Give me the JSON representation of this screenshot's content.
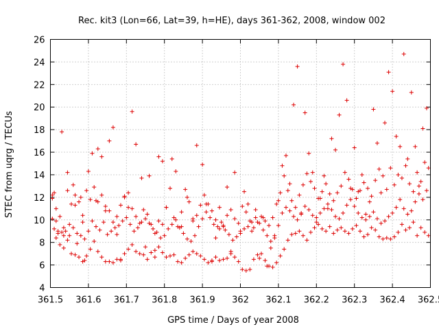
{
  "chart_data": {
    "type": "scatter",
    "title": "Rec. kit3 (Lon=66, Lat=39, h=HE), days 361-362, 2008, window 002",
    "xlabel": "GPS time / Days of year 2008",
    "ylabel": "STEC from uqrg / TECUs",
    "xlim": [
      361.5,
      362.5
    ],
    "ylim": [
      4,
      26
    ],
    "xticks": [
      361.5,
      361.6,
      361.7,
      361.8,
      361.9,
      362,
      362.1,
      362.2,
      362.3,
      362.4,
      362.5
    ],
    "xtick_labels": [
      "361.5",
      "361.6",
      "361.7",
      "361.8",
      "361.9",
      "362",
      "362.1",
      "362.2",
      "362.3",
      "362.4",
      "362.5"
    ],
    "yticks": [
      4,
      6,
      8,
      10,
      12,
      14,
      16,
      18,
      20,
      22,
      24,
      26
    ],
    "ytick_labels": [
      "4",
      "6",
      "8",
      "10",
      "12",
      "14",
      "16",
      "18",
      "20",
      "22",
      "24",
      "26"
    ],
    "grid": true,
    "marker": "+",
    "color": "#dd0000",
    "series": [
      {
        "x": [
          361.505,
          361.51,
          361.515,
          361.52,
          361.53,
          361.535,
          361.545,
          361.55,
          361.56,
          361.565,
          361.57,
          361.58,
          361.585,
          361.59,
          361.6,
          361.61,
          361.62,
          361.625,
          361.635,
          361.645,
          361.655,
          361.665,
          361.675,
          361.685,
          361.695,
          361.705,
          361.715,
          361.725,
          361.74,
          361.75,
          361.76,
          361.775,
          361.785,
          361.795,
          361.805,
          361.82,
          361.83,
          361.845,
          361.86,
          361.875,
          361.885,
          361.9,
          361.91,
          361.925,
          361.935,
          361.945,
          361.955,
          361.965,
          361.975,
          361.985,
          362.0,
          362.01,
          362.02,
          362.03,
          362.04,
          362.05,
          362.06,
          362.07,
          362.08,
          362.09,
          362.1,
          362.11,
          362.12,
          362.13,
          362.14,
          362.15,
          362.16,
          362.17,
          362.18,
          362.19,
          362.2,
          362.21,
          362.22,
          362.23,
          362.24,
          362.25,
          362.26,
          362.27,
          362.28,
          362.29,
          362.3,
          362.31,
          362.32,
          362.33,
          362.34,
          362.35,
          362.36,
          362.37,
          362.38,
          362.39,
          362.4,
          362.41,
          362.42,
          362.43,
          362.44,
          362.45,
          362.46,
          362.47,
          362.48,
          362.49
        ],
        "y": [
          11.9,
          12.4,
          9.9,
          8.8,
          17.8,
          9.3,
          14.2,
          8.6,
          13.1,
          11.3,
          7.9,
          12.0,
          9.8,
          6.4,
          14.3,
          15.9,
          11.7,
          16.3,
          15.6,
          10.8,
          17.0,
          18.2,
          8.7,
          6.4,
          12.1,
          11.1,
          19.6,
          16.7,
          13.7,
          7.6,
          13.9,
          6.7,
          15.6,
          15.2,
          11.1,
          15.4,
          14.3,
          9.4,
          12.0,
          10.1,
          16.6,
          14.9,
          11.4,
          6.4,
          8.4,
          11.1,
          9.4,
          12.9,
          7.2,
          14.2,
          9.0,
          12.5,
          11.4,
          9.0,
          10.9,
          6.6,
          10.2,
          5.9,
          7.5,
          8.6,
          11.7,
          14.8,
          15.7,
          13.2,
          20.2,
          23.6,
          10.6,
          19.5,
          15.9,
          14.2,
          9.8,
          11.9,
          13.9,
          11.0,
          17.2,
          16.2,
          19.3,
          23.8,
          20.6,
          12.8,
          16.4,
          12.5,
          14.0,
          10.5,
          11.6,
          19.8,
          16.8,
          12.4,
          18.6,
          23.1,
          21.4,
          17.4,
          16.5,
          24.7,
          15.4,
          21.3,
          16.5,
          13.0,
          18.1,
          19.9
        ]
      },
      {
        "x": [
          361.505,
          361.515,
          361.525,
          361.535,
          361.545,
          361.555,
          361.565,
          361.575,
          361.585,
          361.595,
          361.605,
          361.615,
          361.625,
          361.635,
          361.645,
          361.655,
          361.665,
          361.675,
          361.685,
          361.695,
          361.705,
          361.715,
          361.725,
          361.735,
          361.745,
          361.755,
          361.765,
          361.775,
          361.785,
          361.795,
          361.805,
          361.815,
          361.825,
          361.835,
          361.845,
          361.855,
          361.865,
          361.875,
          361.885,
          361.895,
          361.905,
          361.915,
          361.925,
          361.935,
          361.945,
          361.955,
          361.965,
          361.975,
          361.985,
          361.995,
          362.005,
          362.015,
          362.025,
          362.035,
          362.045,
          362.055,
          362.065,
          362.075,
          362.085,
          362.095,
          362.105,
          362.115,
          362.125,
          362.135,
          362.145,
          362.155,
          362.165,
          362.175,
          362.185,
          362.195,
          362.205,
          362.215,
          362.225,
          362.235,
          362.245,
          362.255,
          362.265,
          362.275,
          362.285,
          362.295,
          362.305,
          362.315,
          362.325,
          362.335,
          362.345,
          362.355,
          362.365,
          362.375,
          362.385,
          362.395,
          362.405,
          362.415,
          362.425,
          362.435,
          362.445,
          362.455,
          362.465,
          362.475,
          362.485,
          362.495
        ],
        "y": [
          10.1,
          8.4,
          7.8,
          7.5,
          8.2,
          7.0,
          6.9,
          6.7,
          6.3,
          6.8,
          7.4,
          8.1,
          7.2,
          6.7,
          6.3,
          6.3,
          6.2,
          6.5,
          6.5,
          7.0,
          7.4,
          7.8,
          7.2,
          7.0,
          6.9,
          6.5,
          7.1,
          7.3,
          7.6,
          7.1,
          6.7,
          6.8,
          6.9,
          6.3,
          6.2,
          6.6,
          6.9,
          7.2,
          7.0,
          6.8,
          6.5,
          6.2,
          6.3,
          6.7,
          6.4,
          6.5,
          6.6,
          7.0,
          6.7,
          6.3,
          5.6,
          5.5,
          5.6,
          6.5,
          6.9,
          7.0,
          6.4,
          5.9,
          5.8,
          6.2,
          6.8,
          7.4,
          8.2,
          8.7,
          8.8,
          9.0,
          8.6,
          8.2,
          8.9,
          9.3,
          9.6,
          9.2,
          9.0,
          9.4,
          8.8,
          9.1,
          9.3,
          9.0,
          8.8,
          9.2,
          9.5,
          9.0,
          8.5,
          8.7,
          9.3,
          9.1,
          8.5,
          8.3,
          8.4,
          8.3,
          8.5,
          8.9,
          9.6,
          9.1,
          9.3,
          9.8,
          8.6,
          9.3,
          8.9,
          8.6
        ]
      },
      {
        "x": [
          361.51,
          361.52,
          361.53,
          361.54,
          361.55,
          361.56,
          361.57,
          361.58,
          361.59,
          361.6,
          361.61,
          361.62,
          361.63,
          361.64,
          361.65,
          361.66,
          361.67,
          361.68,
          361.69,
          361.7,
          361.71,
          361.72,
          361.73,
          361.74,
          361.75,
          361.76,
          361.77,
          361.78,
          361.79,
          361.8,
          361.81,
          361.82,
          361.83,
          361.84,
          361.85,
          361.86,
          361.87,
          361.88,
          361.89,
          361.9,
          361.91,
          361.92,
          361.93,
          361.94,
          361.95,
          361.96,
          361.97,
          361.98,
          361.99,
          362.0,
          362.01,
          362.02,
          362.03,
          362.04,
          362.05,
          362.06,
          362.07,
          362.08,
          362.09,
          362.1,
          362.11,
          362.12,
          362.13,
          362.14,
          362.15,
          362.16,
          362.17,
          362.18,
          362.19,
          362.2,
          362.21,
          362.22,
          362.23,
          362.24,
          362.25,
          362.26,
          362.27,
          362.28,
          362.29,
          362.3,
          362.31,
          362.32,
          362.33,
          362.34,
          362.35,
          362.36,
          362.37,
          362.38,
          362.39,
          362.4,
          362.41,
          362.42,
          362.43,
          362.44,
          362.45,
          362.46,
          362.47,
          362.48,
          362.49
        ],
        "y": [
          9.2,
          9.0,
          8.9,
          9.0,
          9.6,
          9.3,
          8.8,
          8.6,
          8.3,
          9.0,
          9.9,
          9.4,
          9.1,
          9.8,
          8.7,
          9.0,
          9.3,
          9.5,
          9.9,
          10.2,
          9.6,
          9.0,
          9.3,
          9.8,
          10.1,
          9.7,
          9.2,
          8.9,
          8.4,
          8.6,
          9.2,
          9.6,
          10.0,
          9.3,
          8.8,
          8.3,
          8.1,
          8.6,
          9.4,
          10.1,
          10.7,
          10.2,
          9.6,
          9.4,
          9.8,
          9.1,
          8.7,
          8.2,
          8.5,
          8.8,
          9.2,
          9.4,
          9.8,
          10.2,
          9.7,
          9.1,
          8.6,
          8.1,
          8.4,
          9.5,
          10.6,
          11.1,
          10.8,
          10.3,
          10.0,
          10.5,
          11.2,
          10.9,
          10.4,
          10.2,
          10.6,
          11.0,
          11.4,
          10.9,
          10.3,
          10.1,
          10.6,
          11.3,
          11.8,
          11.2,
          10.6,
          10.2,
          10.0,
          10.3,
          10.7,
          10.1,
          9.7,
          9.9,
          10.3,
          10.6,
          11.1,
          11.8,
          11.0,
          10.5,
          10.8,
          11.6,
          12.3,
          11.8,
          12.6
        ]
      },
      {
        "x": [
          361.505,
          361.515,
          361.525,
          361.535,
          361.545,
          361.555,
          361.565,
          361.575,
          361.585,
          361.595,
          361.605,
          361.615,
          361.625,
          361.635,
          361.645,
          361.655,
          361.665,
          361.675,
          361.685,
          361.695,
          361.705,
          361.715,
          361.725,
          361.735,
          361.745,
          361.755,
          361.765,
          361.775,
          361.785,
          361.795,
          361.805,
          361.815,
          361.825,
          361.835,
          361.845,
          361.855,
          361.865,
          361.875,
          361.885,
          361.895,
          361.905,
          361.915,
          361.925,
          361.935,
          361.945,
          361.955,
          361.965,
          361.975,
          361.985,
          361.995,
          362.005,
          362.015,
          362.025,
          362.035,
          362.045,
          362.055,
          362.065,
          362.075,
          362.085,
          362.095,
          362.105,
          362.115,
          362.125,
          362.135,
          362.145,
          362.155,
          362.165,
          362.175,
          362.185,
          362.195,
          362.205,
          362.215,
          362.225,
          362.235,
          362.245,
          362.255,
          362.265,
          362.275,
          362.285,
          362.295,
          362.305,
          362.315,
          362.325,
          362.335,
          362.345,
          362.355,
          362.365,
          362.375,
          362.385,
          362.395,
          362.405,
          362.415,
          362.425,
          362.435,
          362.445,
          362.455,
          362.465,
          362.475,
          362.485,
          362.495
        ],
        "y": [
          12.2,
          11.0,
          10.3,
          8.6,
          12.6,
          11.4,
          12.2,
          11.6,
          10.4,
          12.6,
          11.8,
          12.9,
          11.6,
          12.2,
          11.2,
          10.8,
          9.8,
          10.3,
          11.3,
          12.0,
          12.4,
          11.0,
          10.3,
          9.7,
          10.9,
          10.5,
          9.6,
          8.8,
          9.9,
          9.6,
          11.1,
          12.8,
          10.2,
          9.4,
          10.7,
          12.7,
          11.6,
          9.9,
          10.4,
          11.3,
          12.2,
          11.4,
          10.8,
          10.0,
          9.2,
          9.5,
          10.4,
          10.9,
          10.1,
          9.7,
          11.2,
          10.7,
          9.9,
          9.3,
          9.8,
          10.3,
          9.9,
          9.5,
          10.2,
          11.4,
          12.4,
          13.9,
          12.6,
          11.7,
          11.1,
          12.2,
          13.1,
          14.1,
          13.4,
          12.8,
          11.9,
          12.5,
          13.2,
          12.3,
          11.7,
          12.4,
          13.0,
          14.2,
          13.6,
          12.7,
          11.9,
          12.6,
          13.3,
          12.8,
          12.1,
          13.5,
          14.5,
          13.9,
          12.7,
          14.6,
          13.1,
          14.0,
          13.7,
          14.8,
          13.2,
          12.5,
          14.2,
          13.4,
          15.1,
          14.6
        ]
      }
    ]
  }
}
